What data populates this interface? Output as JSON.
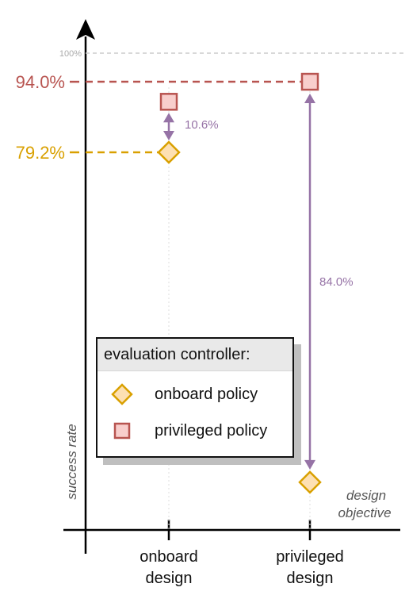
{
  "chart_data": {
    "type": "scatter",
    "categories": [
      "onboard\ndesign",
      "privileged\ndesign"
    ],
    "xlabel": "design objective",
    "ylabel": "success rate",
    "ylim": [
      0,
      100
    ],
    "reference_line": {
      "value": 100,
      "label": "100%"
    },
    "series": [
      {
        "name": "onboard policy",
        "marker": "diamond",
        "color": "#d9a000",
        "fill": "#fde0b3",
        "values": [
          79.2,
          10.0
        ]
      },
      {
        "name": "privileged policy",
        "marker": "square",
        "color": "#b85450",
        "fill": "#f8cecc",
        "values": [
          89.8,
          94.0
        ]
      }
    ],
    "value_callouts": [
      {
        "label": "94.0%",
        "value": 94.0,
        "color": "#b85450"
      },
      {
        "label": "79.2%",
        "value": 79.2,
        "color": "#d9a000"
      }
    ],
    "gap_annotations": [
      {
        "category_index": 0,
        "label": "10.6%",
        "color": "#9673a6"
      },
      {
        "category_index": 1,
        "label": "84.0%",
        "color": "#9673a6"
      }
    ],
    "grid": false
  },
  "legend": {
    "title": "evaluation controller:",
    "items": [
      {
        "label": "onboard policy"
      },
      {
        "label": "privileged policy"
      }
    ]
  }
}
